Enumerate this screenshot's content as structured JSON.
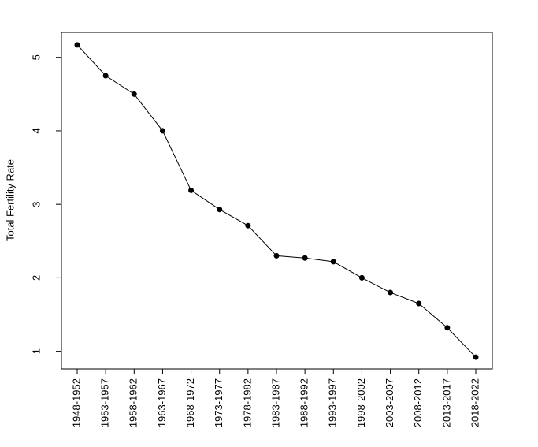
{
  "chart_data": {
    "type": "line",
    "y_label": "Total Fertility Rate",
    "categories": [
      "1948-1952",
      "1953-1957",
      "1958-1962",
      "1963-1967",
      "1968-1972",
      "1973-1977",
      "1978-1982",
      "1983-1987",
      "1988-1992",
      "1993-1997",
      "1998-2002",
      "2003-2007",
      "2008-2012",
      "2013-2017",
      "2018-2022"
    ],
    "values": [
      5.17,
      4.75,
      4.5,
      4.0,
      3.19,
      2.93,
      2.71,
      2.3,
      2.27,
      2.22,
      2.0,
      1.8,
      1.65,
      1.32,
      0.92
    ],
    "color": "#000000",
    "ylim": [
      0.76,
      5.34
    ],
    "yticks": [
      1,
      2,
      3,
      4,
      5
    ]
  }
}
